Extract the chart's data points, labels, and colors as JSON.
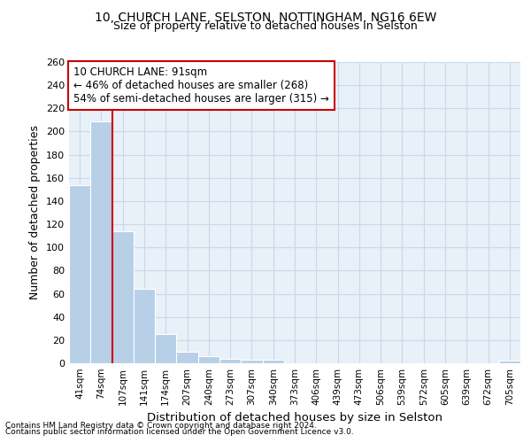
{
  "title1": "10, CHURCH LANE, SELSTON, NOTTINGHAM, NG16 6EW",
  "title2": "Size of property relative to detached houses in Selston",
  "xlabel": "Distribution of detached houses by size in Selston",
  "ylabel": "Number of detached properties",
  "footer1": "Contains HM Land Registry data © Crown copyright and database right 2024.",
  "footer2": "Contains public sector information licensed under the Open Government Licence v3.0.",
  "categories": [
    "41sqm",
    "74sqm",
    "107sqm",
    "141sqm",
    "174sqm",
    "207sqm",
    "240sqm",
    "273sqm",
    "307sqm",
    "340sqm",
    "373sqm",
    "406sqm",
    "439sqm",
    "473sqm",
    "506sqm",
    "539sqm",
    "572sqm",
    "605sqm",
    "639sqm",
    "672sqm",
    "705sqm"
  ],
  "values": [
    154,
    209,
    114,
    64,
    25,
    10,
    6,
    4,
    3,
    3,
    0,
    0,
    0,
    0,
    0,
    0,
    0,
    0,
    0,
    0,
    2
  ],
  "bar_color": "#b8cfe8",
  "bar_edge_color": "#ffffff",
  "grid_color": "#c8d8ec",
  "bg_color": "#e8f0f8",
  "red_line_x": 1.5,
  "annotation_line1": "10 CHURCH LANE: 91sqm",
  "annotation_line2": "← 46% of detached houses are smaller (268)",
  "annotation_line3": "54% of semi-detached houses are larger (315) →",
  "annotation_box_color": "#ffffff",
  "annotation_border_color": "#cc0000",
  "ylim": [
    0,
    260
  ],
  "yticks": [
    0,
    20,
    40,
    60,
    80,
    100,
    120,
    140,
    160,
    180,
    200,
    220,
    240,
    260
  ]
}
